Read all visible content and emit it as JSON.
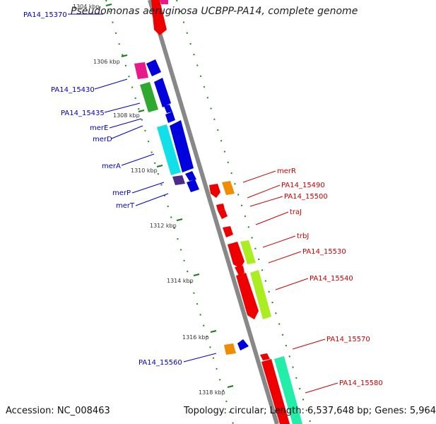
{
  "title": "Pseudomonas aeruginosa UCBPP-PA14, complete genome",
  "footer": {
    "accession": "Accession: NC_008463",
    "summary": "Topology: circular; Length: 6,537,648 bp; Genes: 5,964"
  },
  "colors": {
    "backbone": "#888888",
    "tick_mark": "#1a7a1a",
    "label_reverse": "#0000cc",
    "label_forward": "#cc0000"
  },
  "ticks": [
    "1304 kbp",
    "1306 kbp",
    "1308 kbp",
    "1310 kbp",
    "1312 kbp",
    "1314 kbp",
    "1316 kbp",
    "1318 kbp"
  ],
  "genes_reverse": [
    {
      "label": "PA14_15370"
    },
    {
      "label": "PA14_15430"
    },
    {
      "label": "PA14_15435"
    },
    {
      "label": "merE"
    },
    {
      "label": "merD"
    },
    {
      "label": "merA"
    },
    {
      "label": "merP"
    },
    {
      "label": "merT"
    },
    {
      "label": "PA14_15560"
    }
  ],
  "genes_forward": [
    {
      "label": "merR"
    },
    {
      "label": "PA14_15490"
    },
    {
      "label": "PA14_15500"
    },
    {
      "label": "traJ"
    },
    {
      "label": "trbJ"
    },
    {
      "label": "PA14_15530"
    },
    {
      "label": "PA14_15540"
    },
    {
      "label": "PA14_15570"
    },
    {
      "label": "PA14_15580"
    }
  ]
}
